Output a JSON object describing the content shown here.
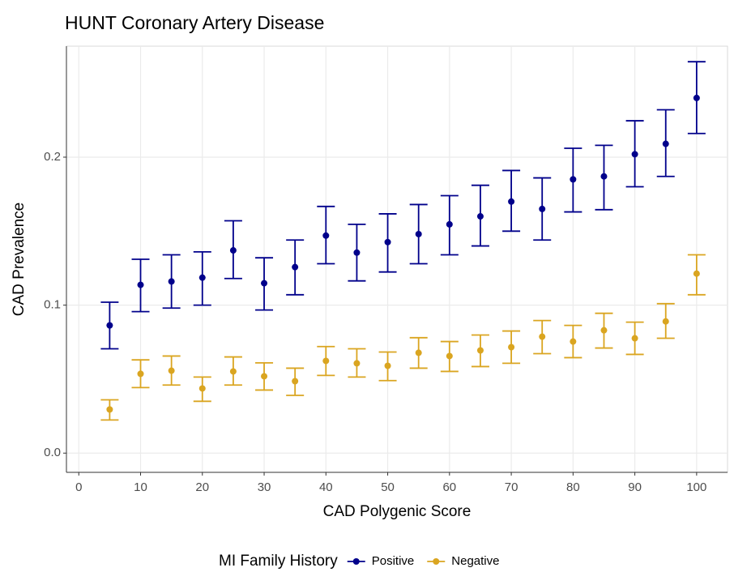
{
  "chart_data": {
    "type": "errorbar-scatter",
    "title": "HUNT Coronary Artery Disease",
    "x_label": "CAD Polygenic Score",
    "y_label": "CAD Prevalence",
    "legend_title": "MI Family History",
    "legend_position": "bottom",
    "grid": true,
    "xlim": [
      -2,
      105
    ],
    "xticks": [
      0,
      10,
      20,
      30,
      40,
      50,
      60,
      70,
      80,
      90,
      100
    ],
    "ylim": [
      -0.013,
      0.275
    ],
    "yticks": [
      {
        "value": 0,
        "label": "0.0"
      },
      0.1,
      0.2
    ],
    "x": [
      5,
      10,
      15,
      20,
      25,
      30,
      35,
      40,
      45,
      50,
      55,
      60,
      65,
      70,
      75,
      80,
      85,
      90,
      95,
      100
    ],
    "series": [
      {
        "name": "Positive",
        "color": "#00008b",
        "values": [
          0.0863,
          0.1137,
          0.116,
          0.1186,
          0.137,
          0.1148,
          0.1257,
          0.147,
          0.1355,
          0.1426,
          0.148,
          0.1546,
          0.16,
          0.17,
          0.165,
          0.185,
          0.187,
          0.202,
          0.209,
          0.24
        ],
        "lower": [
          0.0705,
          0.0956,
          0.098,
          0.1,
          0.118,
          0.0967,
          0.107,
          0.128,
          0.1164,
          0.1224,
          0.128,
          0.134,
          0.14,
          0.15,
          0.144,
          0.163,
          0.1645,
          0.18,
          0.187,
          0.216
        ],
        "upper": [
          0.102,
          0.131,
          0.134,
          0.136,
          0.157,
          0.132,
          0.144,
          0.1667,
          0.1546,
          0.1617,
          0.168,
          0.174,
          0.181,
          0.191,
          0.186,
          0.206,
          0.208,
          0.2246,
          0.232,
          0.2645
        ]
      },
      {
        "name": "Negative",
        "color": "#daa520",
        "values": [
          0.0295,
          0.0536,
          0.0557,
          0.0437,
          0.0552,
          0.0519,
          0.0486,
          0.0623,
          0.0607,
          0.059,
          0.0678,
          0.0656,
          0.0694,
          0.0716,
          0.0787,
          0.0754,
          0.083,
          0.0776,
          0.089,
          0.1213
        ],
        "lower": [
          0.0224,
          0.0443,
          0.046,
          0.035,
          0.046,
          0.0426,
          0.039,
          0.0525,
          0.0514,
          0.049,
          0.0574,
          0.0552,
          0.0585,
          0.0607,
          0.0672,
          0.0645,
          0.071,
          0.0667,
          0.0776,
          0.107
        ],
        "upper": [
          0.036,
          0.063,
          0.0656,
          0.0514,
          0.065,
          0.061,
          0.0574,
          0.072,
          0.0705,
          0.0683,
          0.078,
          0.0754,
          0.0798,
          0.0825,
          0.0896,
          0.0863,
          0.0945,
          0.0885,
          0.101,
          0.134
        ]
      }
    ]
  }
}
